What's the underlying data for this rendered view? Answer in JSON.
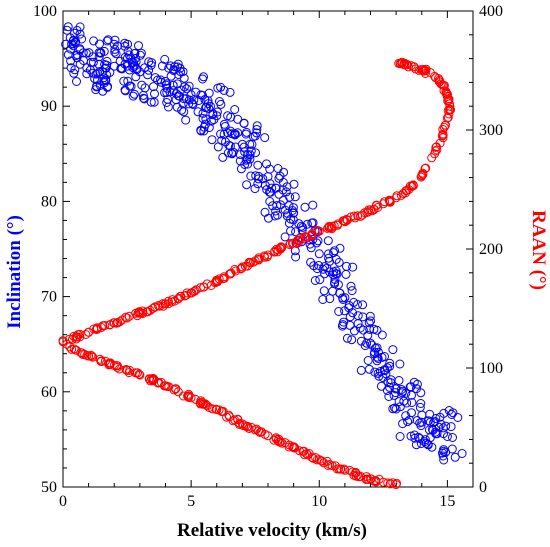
{
  "chart_data": {
    "type": "scatter",
    "xlabel": "Relative velocity (km/s)",
    "ylabel_left": "Inclination (°)",
    "ylabel_right": "RAAN (°)",
    "xlim": [
      0,
      16
    ],
    "ylim_left": [
      50,
      100
    ],
    "ylim_right": [
      0,
      400
    ],
    "x_ticks": [
      "0",
      "5",
      "10",
      "15"
    ],
    "y_left_ticks": [
      "50",
      "60",
      "70",
      "80",
      "90",
      "100"
    ],
    "y_right_ticks": [
      "0",
      "100",
      "200",
      "300",
      "400"
    ],
    "grid": false,
    "colors": {
      "inclination": "#0000ff",
      "raan": "#ff0000"
    },
    "series": [
      {
        "axis": "left",
        "color": "#0000ff",
        "x": [
          0.1,
          0.3,
          0.5,
          0.8,
          1.1,
          1.4,
          1.7,
          2.0,
          2.3,
          2.6,
          3.0,
          3.3,
          3.6,
          4.0,
          4.3,
          4.6,
          5.0,
          5.3,
          5.6,
          6.0,
          6.3,
          6.6,
          7.0,
          7.3,
          7.6,
          8.0,
          8.3,
          8.6,
          9.0,
          9.3,
          9.6,
          10.0,
          10.3,
          10.6,
          11.0,
          11.3,
          11.6,
          12.0,
          12.3,
          12.6,
          13.0,
          13.3,
          13.6,
          14.0,
          14.3,
          14.6,
          15.0,
          15.2
        ],
        "y": [
          96.5,
          96.0,
          95.3,
          94.8,
          94.6,
          94.4,
          94.3,
          94.2,
          94.0,
          93.8,
          93.6,
          93.3,
          93.0,
          92.6,
          92.2,
          91.7,
          91.2,
          90.6,
          89.9,
          89.0,
          88.1,
          87.1,
          86.0,
          84.9,
          83.8,
          82.6,
          81.4,
          80.1,
          78.8,
          77.4,
          76.0,
          74.5,
          73.0,
          71.5,
          69.9,
          68.3,
          66.7,
          65.1,
          63.5,
          61.9,
          60.4,
          59.0,
          57.8,
          56.8,
          56.0,
          55.6,
          55.3,
          55.2
        ]
      },
      {
        "axis": "right",
        "color": "#ff0000",
        "x": [
          0.0,
          0.5,
          1.0,
          1.5,
          2.0,
          2.5,
          3.0,
          3.5,
          4.0,
          4.5,
          5.0,
          5.5,
          6.0,
          6.5,
          7.0,
          7.5,
          8.0,
          8.5,
          9.0,
          9.5,
          10.0,
          10.5,
          11.0,
          11.5,
          12.0,
          12.5,
          13.0
        ],
        "y": [
          122,
          115,
          110,
          106,
          102,
          98,
          94,
          90,
          85,
          80,
          75,
          70,
          65,
          59,
          53,
          48,
          43,
          38,
          33,
          28,
          23,
          18,
          14,
          10,
          7,
          4,
          2
        ]
      },
      {
        "axis": "right",
        "color": "#ff0000",
        "x": [
          0.0,
          0.5,
          1.0,
          1.5,
          2.0,
          2.5,
          3.0,
          3.5,
          4.0,
          4.5,
          5.0,
          5.5,
          6.0,
          6.5,
          7.0,
          7.5,
          8.0,
          8.5,
          9.0,
          9.5,
          10.0,
          10.5,
          11.0,
          11.5,
          12.0,
          12.5,
          13.0,
          13.5,
          14.0,
          14.5,
          14.8,
          15.0,
          15.1,
          15.0,
          14.8,
          14.5,
          14.1,
          13.7,
          13.3,
          13.1
        ],
        "y": [
          123,
          126,
          130,
          134,
          138,
          142,
          146,
          150,
          154,
          158,
          163,
          168,
          173,
          179,
          185,
          190,
          195,
          200,
          205,
          210,
          215,
          219,
          223,
          228,
          233,
          238,
          243,
          250,
          262,
          280,
          295,
          310,
          320,
          330,
          338,
          345,
          350,
          353,
          355,
          356
        ]
      }
    ]
  }
}
